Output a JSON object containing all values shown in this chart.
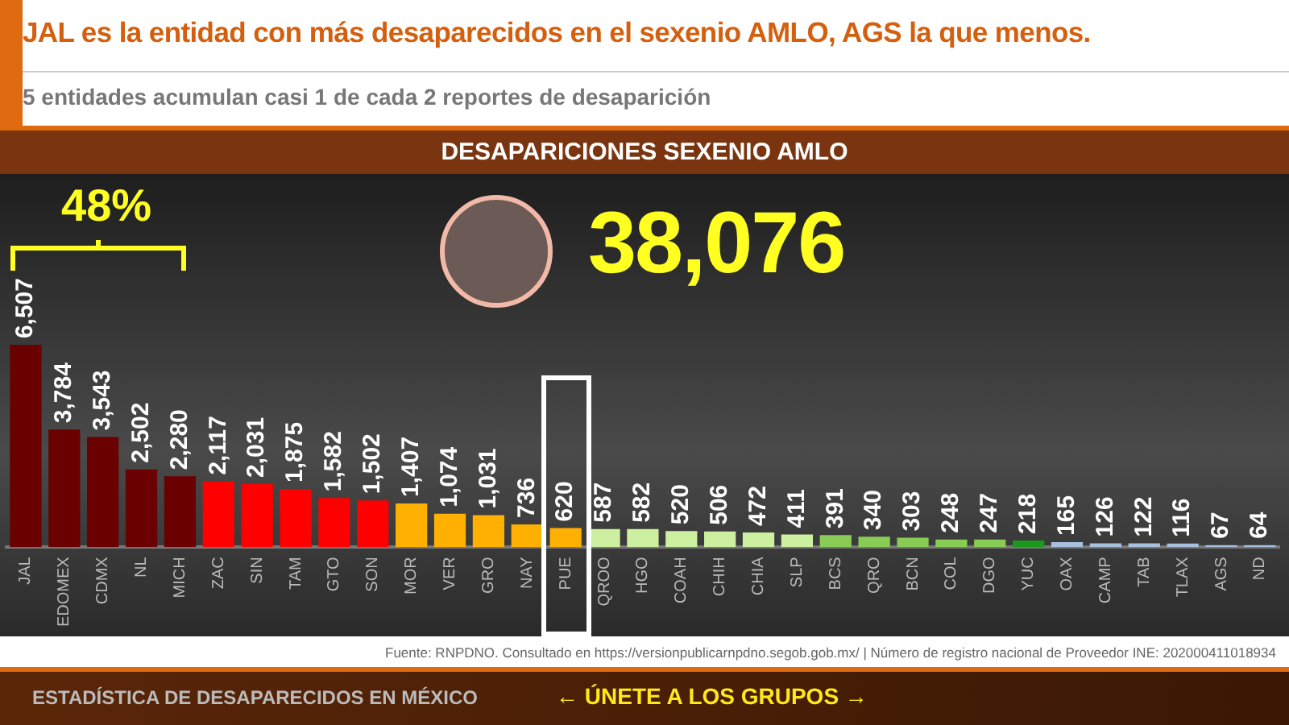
{
  "chart_data": {
    "type": "bar",
    "title": "JAL es la entidad con más desaparecidos en el sexenio AMLO, AGS la que menos.",
    "subtitle": "5 entidades acumulan casi 1 de cada 2 reportes de desaparición",
    "categories": [
      "JAL",
      "EDOMEX",
      "CDMX",
      "NL",
      "MICH",
      "ZAC",
      "SIN",
      "TAM",
      "GTO",
      "SON",
      "MOR",
      "VER",
      "GRO",
      "NAY",
      "PUE",
      "QROO",
      "HGO",
      "COAH",
      "CHIH",
      "CHIA",
      "SLP",
      "BCS",
      "QRO",
      "BCN",
      "COL",
      "DGO",
      "YUC",
      "OAX",
      "CAMP",
      "TAB",
      "TLAX",
      "AGS",
      "ND"
    ],
    "values": [
      6507,
      3784,
      3543,
      2502,
      2280,
      2117,
      2031,
      1875,
      1582,
      1502,
      1407,
      1074,
      1031,
      736,
      620,
      587,
      582,
      520,
      506,
      472,
      411,
      391,
      340,
      303,
      248,
      247,
      218,
      165,
      126,
      122,
      116,
      67,
      64
    ],
    "value_labels": [
      "6,507",
      "3,784",
      "3,543",
      "2,502",
      "2,280",
      "2,117",
      "2,031",
      "1,875",
      "1,582",
      "1,502",
      "1,407",
      "1,074",
      "1,031",
      "736",
      "620",
      "587",
      "582",
      "520",
      "506",
      "472",
      "411",
      "391",
      "340",
      "303",
      "248",
      "247",
      "218",
      "165",
      "126",
      "122",
      "116",
      "67",
      "64"
    ],
    "colors": [
      "#6b0000",
      "#6b0000",
      "#6b0000",
      "#6b0000",
      "#6b0000",
      "#ff0000",
      "#ff0000",
      "#ff0000",
      "#ff0000",
      "#ff0000",
      "#ffb000",
      "#ffb000",
      "#ffb000",
      "#ffb000",
      "#ffb000",
      "#ccf0a0",
      "#ccf0a0",
      "#ccf0a0",
      "#ccf0a0",
      "#ccf0a0",
      "#ccf0a0",
      "#88cc55",
      "#88cc55",
      "#88cc55",
      "#88cc55",
      "#88cc55",
      "#1a9a1a",
      "#a8c0e0",
      "#a8c0e0",
      "#a8c0e0",
      "#a8c0e0",
      "#a8c0e0",
      "#a8c0e0"
    ],
    "tick_labels": "x",
    "grid": false,
    "legend": false,
    "annotations": [
      "48%",
      "38,076",
      "Fuente: RNPDNO. Consultado en https://versionpublicarnpdno.segob.gob.mx/ | Número de registro nacional de Proveedor INE: 202000411018934",
      "ESTADÍSTICA DE DESAPARECIDOS EN MÉXICO",
      "← ÚNETE A LOS GRUPOS →",
      "DESAPARICIONES SEXENIO AMLO"
    ]
  }
}
